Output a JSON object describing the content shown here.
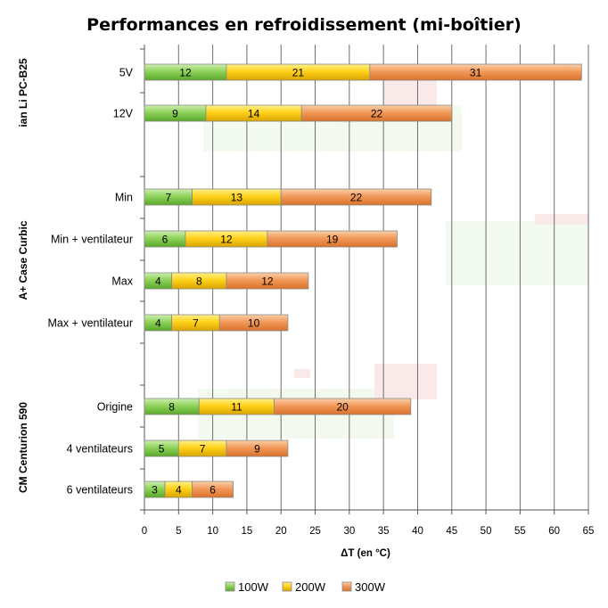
{
  "chart_data": {
    "type": "bar",
    "orientation": "horizontal",
    "stacked": true,
    "title": "Performances en refroidissement (mi-boîtier)",
    "xlabel": "ΔT (en °C)",
    "ylabel": "",
    "xlim": [
      0,
      65
    ],
    "xticks": [
      0,
      5,
      10,
      15,
      20,
      25,
      30,
      35,
      40,
      45,
      50,
      55,
      60,
      65
    ],
    "grid": true,
    "legend_position": "bottom",
    "groups": [
      {
        "name": "ian Li PC-B25",
        "categories": [
          "5V",
          "12V"
        ]
      },
      {
        "name": "A+ Case Curbic",
        "categories": [
          "Min",
          "Min + ventilateur",
          "Max",
          "Max + ventilateur"
        ]
      },
      {
        "name": "CM Centurion 590",
        "categories": [
          "Origine",
          "4 ventilateurs",
          "6 ventilateurs"
        ]
      }
    ],
    "categories": [
      "5V",
      "12V",
      "Min",
      "Min + ventilateur",
      "Max",
      "Max + ventilateur",
      "Origine",
      "4 ventilateurs",
      "6 ventilateurs"
    ],
    "series": [
      {
        "name": "100W",
        "color": "#7fcf4a",
        "values": [
          12,
          9,
          7,
          6,
          4,
          4,
          8,
          5,
          3
        ]
      },
      {
        "name": "200W",
        "color": "#f5c800",
        "values": [
          21,
          14,
          13,
          12,
          8,
          7,
          11,
          7,
          4
        ]
      },
      {
        "name": "300W",
        "color": "#f08c46",
        "values": [
          31,
          22,
          22,
          19,
          12,
          10,
          20,
          9,
          6
        ]
      }
    ]
  }
}
